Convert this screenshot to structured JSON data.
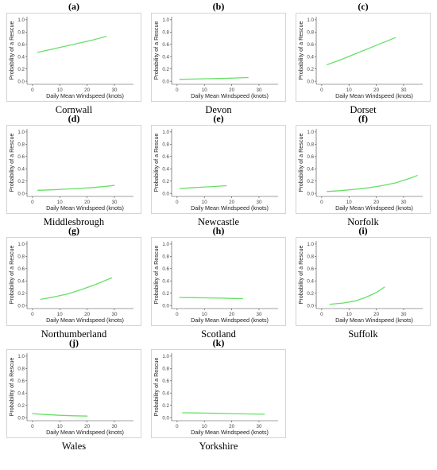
{
  "figure": {
    "ylabel": "Probability of a Rescue",
    "xlabel": "Daily Mean Windspeed (knots)"
  },
  "chart_data": [
    {
      "type": "line",
      "panel_label": "(a)",
      "caption": "Cornwall",
      "xlabel": "Daily Mean Windspeed (knots)",
      "ylabel": "Probability of a Rescue",
      "xlim": [
        -2,
        37
      ],
      "ylim": [
        -0.05,
        1.05
      ],
      "xticks": [
        0,
        10,
        20,
        30
      ],
      "yticks": [
        0.0,
        0.2,
        0.4,
        0.6,
        0.8,
        1.0
      ],
      "ytick_labels": [
        "0.0",
        "0.2",
        "0.4",
        "0.6",
        "0.8",
        "1.0"
      ],
      "grid": false,
      "series": [
        {
          "color": "#66e066",
          "x": [
            2,
            7,
            12,
            17,
            22,
            27
          ],
          "y": [
            0.47,
            0.52,
            0.57,
            0.62,
            0.67,
            0.73
          ]
        }
      ]
    },
    {
      "type": "line",
      "panel_label": "(b)",
      "caption": "Devon",
      "xlabel": "Daily Mean Windspeed (knots)",
      "ylabel": "Probability of a Rescue",
      "xlim": [
        -2,
        37
      ],
      "ylim": [
        -0.05,
        1.05
      ],
      "xticks": [
        0,
        10,
        20,
        30
      ],
      "yticks": [
        0.0,
        0.2,
        0.4,
        0.6,
        0.8,
        1.0
      ],
      "ytick_labels": [
        "0.0",
        "0.2",
        "0.4",
        "0.6",
        "0.8",
        "1.0"
      ],
      "grid": false,
      "series": [
        {
          "color": "#66e066",
          "x": [
            1,
            6,
            11,
            16,
            21,
            26
          ],
          "y": [
            0.03,
            0.035,
            0.04,
            0.045,
            0.052,
            0.06
          ]
        }
      ]
    },
    {
      "type": "line",
      "panel_label": "(c)",
      "caption": "Dorset",
      "xlabel": "Daily Mean Windspeed (knots)",
      "ylabel": "Probability of a Rescue",
      "xlim": [
        -2,
        37
      ],
      "ylim": [
        -0.05,
        1.05
      ],
      "xticks": [
        0,
        10,
        20,
        30
      ],
      "yticks": [
        0.0,
        0.2,
        0.4,
        0.6,
        0.8,
        1.0
      ],
      "ytick_labels": [
        "0.0",
        "0.2",
        "0.4",
        "0.6",
        "0.8",
        "1.0"
      ],
      "grid": false,
      "series": [
        {
          "color": "#66e066",
          "x": [
            2,
            7,
            12,
            17,
            22,
            27
          ],
          "y": [
            0.27,
            0.35,
            0.44,
            0.53,
            0.62,
            0.71
          ]
        }
      ]
    },
    {
      "type": "line",
      "panel_label": "(d)",
      "caption": "Middlesbrough",
      "xlabel": "Daily Mean Windspeed (knots)",
      "ylabel": "Probability of a Rescue",
      "xlim": [
        -2,
        37
      ],
      "ylim": [
        -0.05,
        1.05
      ],
      "xticks": [
        0,
        10,
        20,
        30
      ],
      "yticks": [
        0.0,
        0.2,
        0.4,
        0.6,
        0.8,
        1.0
      ],
      "ytick_labels": [
        "0.0",
        "0.2",
        "0.4",
        "0.6",
        "0.8",
        "1.0"
      ],
      "grid": false,
      "series": [
        {
          "color": "#66e066",
          "x": [
            2,
            7,
            12,
            17,
            22,
            27,
            30
          ],
          "y": [
            0.05,
            0.058,
            0.068,
            0.08,
            0.095,
            0.115,
            0.13
          ]
        }
      ]
    },
    {
      "type": "line",
      "panel_label": "(e)",
      "caption": "Newcastle",
      "xlabel": "Daily Mean Windspeed (knots)",
      "ylabel": "Probability of a Rescue",
      "xlim": [
        -2,
        37
      ],
      "ylim": [
        -0.05,
        1.05
      ],
      "xticks": [
        0,
        10,
        20,
        30
      ],
      "yticks": [
        0.0,
        0.2,
        0.4,
        0.6,
        0.8,
        1.0
      ],
      "ytick_labels": [
        "0.0",
        "0.2",
        "0.4",
        "0.6",
        "0.8",
        "1.0"
      ],
      "grid": false,
      "series": [
        {
          "color": "#66e066",
          "x": [
            1,
            5,
            9,
            13,
            18
          ],
          "y": [
            0.08,
            0.09,
            0.1,
            0.11,
            0.125
          ]
        }
      ]
    },
    {
      "type": "line",
      "panel_label": "(f)",
      "caption": "Norfolk",
      "xlabel": "Daily Mean Windspeed (knots)",
      "ylabel": "Probability of a Rescue",
      "xlim": [
        -2,
        37
      ],
      "ylim": [
        -0.05,
        1.05
      ],
      "xticks": [
        0,
        10,
        20,
        30
      ],
      "yticks": [
        0.0,
        0.2,
        0.4,
        0.6,
        0.8,
        1.0
      ],
      "ytick_labels": [
        "0.0",
        "0.2",
        "0.4",
        "0.6",
        "0.8",
        "1.0"
      ],
      "grid": false,
      "series": [
        {
          "color": "#66e066",
          "x": [
            2,
            7,
            12,
            17,
            22,
            27,
            32,
            35
          ],
          "y": [
            0.03,
            0.045,
            0.065,
            0.09,
            0.125,
            0.17,
            0.24,
            0.29
          ]
        }
      ]
    },
    {
      "type": "line",
      "panel_label": "(g)",
      "caption": "Northumberland",
      "xlabel": "Daily Mean Windspeed (knots)",
      "ylabel": "Probability of a Rescue",
      "xlim": [
        -2,
        37
      ],
      "ylim": [
        -0.05,
        1.05
      ],
      "xticks": [
        0,
        10,
        20,
        30
      ],
      "yticks": [
        0.0,
        0.2,
        0.4,
        0.6,
        0.8,
        1.0
      ],
      "ytick_labels": [
        "0.0",
        "0.2",
        "0.4",
        "0.6",
        "0.8",
        "1.0"
      ],
      "grid": false,
      "series": [
        {
          "color": "#66e066",
          "x": [
            3,
            8,
            13,
            18,
            23,
            29
          ],
          "y": [
            0.1,
            0.14,
            0.19,
            0.26,
            0.34,
            0.45
          ]
        }
      ]
    },
    {
      "type": "line",
      "panel_label": "(h)",
      "caption": "Scotland",
      "xlabel": "Daily Mean Windspeed (knots)",
      "ylabel": "Probability of a Rescue",
      "xlim": [
        -2,
        37
      ],
      "ylim": [
        -0.05,
        1.05
      ],
      "xticks": [
        0,
        10,
        20,
        30
      ],
      "yticks": [
        0.0,
        0.2,
        0.4,
        0.6,
        0.8,
        1.0
      ],
      "ytick_labels": [
        "0.0",
        "0.2",
        "0.4",
        "0.6",
        "0.8",
        "1.0"
      ],
      "grid": false,
      "series": [
        {
          "color": "#66e066",
          "x": [
            1,
            6,
            11,
            16,
            21,
            24
          ],
          "y": [
            0.13,
            0.127,
            0.123,
            0.12,
            0.115,
            0.112
          ]
        }
      ]
    },
    {
      "type": "line",
      "panel_label": "(i)",
      "caption": "Suffolk",
      "xlabel": "Daily Mean Windspeed (knots)",
      "ylabel": "Probability of a Rescue",
      "xlim": [
        -2,
        37
      ],
      "ylim": [
        -0.05,
        1.05
      ],
      "xticks": [
        0,
        10,
        20,
        30
      ],
      "yticks": [
        0.0,
        0.2,
        0.4,
        0.6,
        0.8,
        1.0
      ],
      "ytick_labels": [
        "0.0",
        "0.2",
        "0.4",
        "0.6",
        "0.8",
        "1.0"
      ],
      "grid": false,
      "series": [
        {
          "color": "#66e066",
          "x": [
            3,
            8,
            12,
            16,
            20,
            23
          ],
          "y": [
            0.02,
            0.04,
            0.07,
            0.13,
            0.21,
            0.3
          ]
        }
      ]
    },
    {
      "type": "line",
      "panel_label": "(j)",
      "caption": "Wales",
      "xlabel": "Daily Mean Windspeed (knots)",
      "ylabel": "Probability of a Rescue",
      "xlim": [
        -2,
        37
      ],
      "ylim": [
        -0.05,
        1.05
      ],
      "xticks": [
        0,
        10,
        20,
        30
      ],
      "yticks": [
        0.0,
        0.2,
        0.4,
        0.6,
        0.8,
        1.0
      ],
      "ytick_labels": [
        "0.0",
        "0.2",
        "0.4",
        "0.6",
        "0.8",
        "1.0"
      ],
      "grid": false,
      "series": [
        {
          "color": "#66e066",
          "x": [
            0,
            5,
            10,
            15,
            20
          ],
          "y": [
            0.065,
            0.05,
            0.038,
            0.03,
            0.025
          ]
        }
      ]
    },
    {
      "type": "line",
      "panel_label": "(k)",
      "caption": "Yorkshire",
      "xlabel": "Daily Mean Windspeed (knots)",
      "ylabel": "Probability of a Rescue",
      "xlim": [
        -2,
        37
      ],
      "ylim": [
        -0.05,
        1.05
      ],
      "xticks": [
        0,
        10,
        20,
        30
      ],
      "yticks": [
        0.0,
        0.2,
        0.4,
        0.6,
        0.8,
        1.0
      ],
      "ytick_labels": [
        "0.0",
        "0.2",
        "0.4",
        "0.6",
        "0.8",
        "1.0"
      ],
      "grid": false,
      "series": [
        {
          "color": "#66e066",
          "x": [
            2,
            8,
            14,
            20,
            26,
            32
          ],
          "y": [
            0.08,
            0.075,
            0.07,
            0.065,
            0.06,
            0.055
          ]
        }
      ]
    }
  ]
}
